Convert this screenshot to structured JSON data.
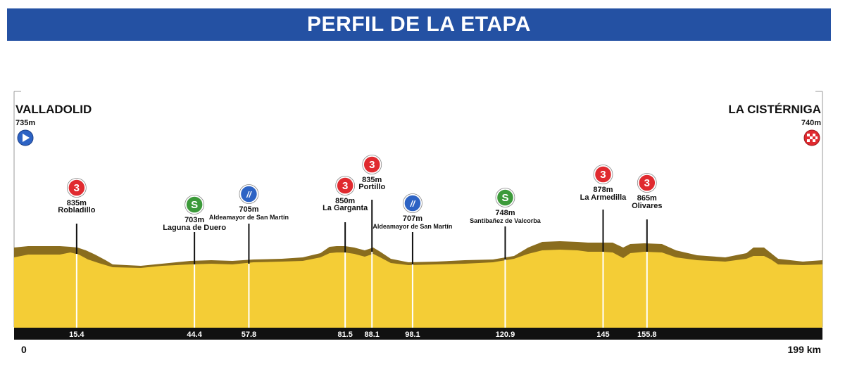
{
  "header": {
    "title": "PERFIL DE LA ETAPA"
  },
  "start": {
    "name": "VALLADOLID",
    "elevation": "735m"
  },
  "finish": {
    "name": "LA CISTÉRNIGA",
    "elevation": "740m"
  },
  "distance": {
    "start_label": "0",
    "end_label": "199 km",
    "total_km": 199
  },
  "colors": {
    "terrain": "#f4cd36",
    "terrain_shadow": "#8a6d1e",
    "km_bar": "#111111",
    "kom_badge": "#e02a2f",
    "sprint_badge": "#3c9a3a",
    "crossing_badge": "#2d63c4"
  },
  "chart_data": {
    "type": "area",
    "x_unit": "km",
    "elevation_unit": "m",
    "points": [
      {
        "km": 15.4,
        "km_label": "15.4",
        "name": "Robladillo",
        "elevation": "835m",
        "badge": "kom",
        "badge_text": "3"
      },
      {
        "km": 44.4,
        "km_label": "44.4",
        "name": "Laguna de Duero",
        "elevation": "703m",
        "badge": "sprint",
        "badge_text": "S"
      },
      {
        "km": 57.8,
        "km_label": "57.8",
        "name": "Aldeamayor de San Martín",
        "elevation": "705m",
        "badge": "crossing",
        "badge_text": "//"
      },
      {
        "km": 81.5,
        "km_label": "81.5",
        "name": "La Garganta",
        "elevation": "850m",
        "badge": "kom",
        "badge_text": "3"
      },
      {
        "km": 88.1,
        "km_label": "88.1",
        "name": "Portillo",
        "elevation": "835m",
        "badge": "kom",
        "badge_text": "3"
      },
      {
        "km": 98.1,
        "km_label": "98.1",
        "name": "Aldeamayor de San Martín",
        "elevation": "707m",
        "badge": "crossing",
        "badge_text": "//"
      },
      {
        "km": 120.9,
        "km_label": "120.9",
        "name": "Santibañez de Valcorba",
        "elevation": "748m",
        "badge": "sprint",
        "badge_text": "S"
      },
      {
        "km": 145,
        "km_label": "145",
        "name": "La Armedilla",
        "elevation": "878m",
        "badge": "kom",
        "badge_text": "3"
      },
      {
        "km": 155.8,
        "km_label": "155.8",
        "name": "Olivares",
        "elevation": "865m",
        "badge": "kom",
        "badge_text": "3"
      }
    ]
  }
}
